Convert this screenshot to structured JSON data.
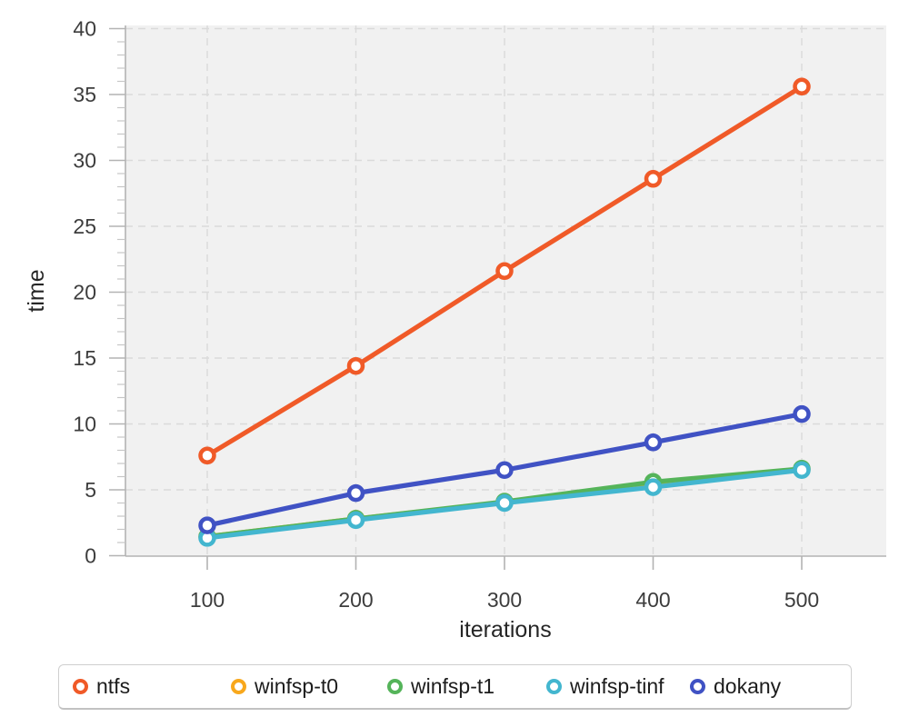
{
  "chart_data": {
    "type": "line",
    "title": "",
    "xlabel": "iterations",
    "ylabel": "time",
    "x": [
      100,
      200,
      300,
      400,
      500
    ],
    "xticks": [
      "100",
      "200",
      "300",
      "400",
      "500"
    ],
    "yticks": [
      "0",
      "5",
      "10",
      "15",
      "20",
      "25",
      "30",
      "35",
      "40"
    ],
    "ytick_values": [
      0,
      5,
      10,
      15,
      20,
      25,
      30,
      35,
      40
    ],
    "ylim": [
      0,
      40
    ],
    "grid": "dashed",
    "legend_position": "bottom",
    "plot_bg_color": "#f1f1f1",
    "series": [
      {
        "name": "ntfs",
        "color": "#F05A28",
        "values": [
          7.6,
          14.4,
          21.6,
          28.6,
          35.6
        ]
      },
      {
        "name": "winfsp-t0",
        "color": "#F8A81C",
        "values": [
          1.45,
          2.8,
          4.05,
          5.3,
          6.55
        ]
      },
      {
        "name": "winfsp-t1",
        "color": "#55B45A",
        "values": [
          1.45,
          2.8,
          4.1,
          5.6,
          6.6
        ]
      },
      {
        "name": "winfsp-tinf",
        "color": "#43B6CF",
        "values": [
          1.35,
          2.7,
          4.0,
          5.2,
          6.5
        ]
      },
      {
        "name": "dokany",
        "color": "#4052C4",
        "values": [
          2.3,
          4.75,
          6.5,
          8.6,
          10.75
        ]
      }
    ]
  }
}
